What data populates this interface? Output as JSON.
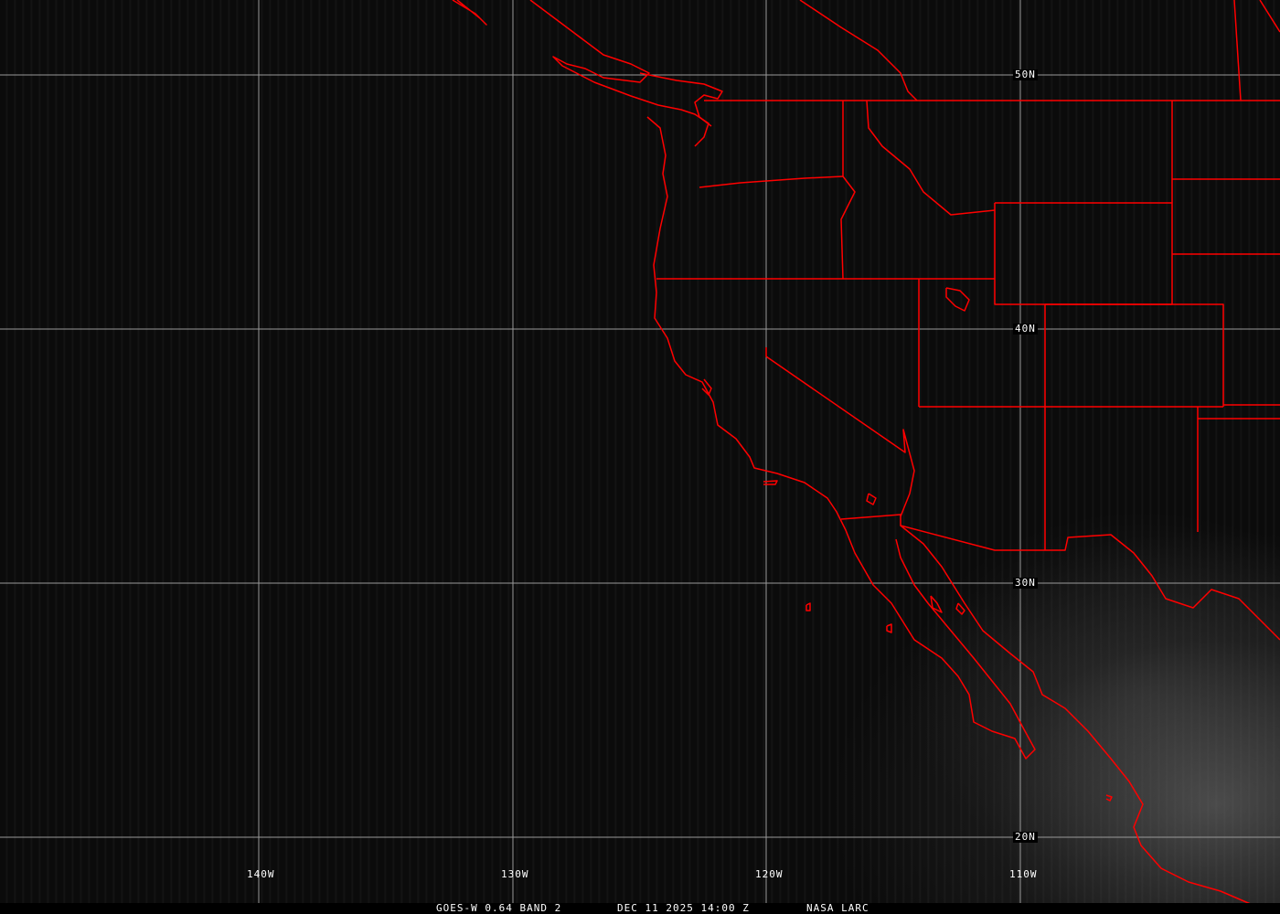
{
  "map": {
    "satellite": "GOES-W",
    "boundary_color": "#ff0000",
    "grid_color": "#a0a0a0",
    "latitude_labels": [
      "50N",
      "40N",
      "30N",
      "20N"
    ],
    "longitude_labels": [
      "140W",
      "130W",
      "120W",
      "110W"
    ]
  },
  "caption": {
    "product": "GOES-W 0.64 BAND 2",
    "datetime": "DEC 11 2025 14:00 Z",
    "source": "NASA LARC"
  }
}
